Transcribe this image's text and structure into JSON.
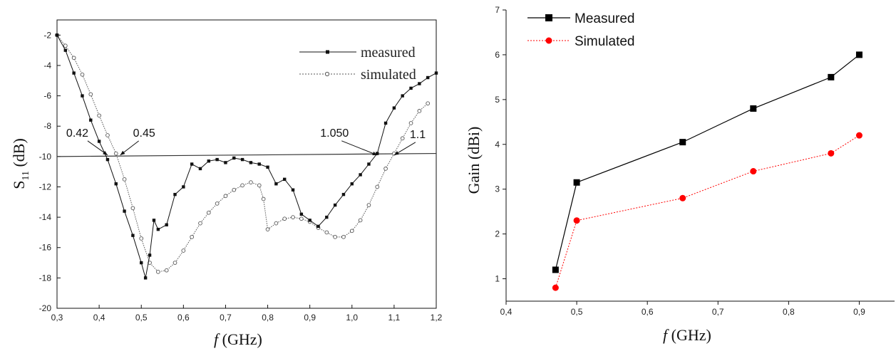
{
  "chart_data": [
    {
      "type": "line",
      "title": "",
      "xlabel_italic": "f",
      "xlabel_rest": " (GHz)",
      "ylabel_main": "S",
      "ylabel_sub": "11",
      "ylabel_unit": " (dB)",
      "xlim": [
        0.3,
        1.2
      ],
      "ylim": [
        -20,
        -1
      ],
      "xticks": [
        0.3,
        0.4,
        0.5,
        0.6,
        0.7,
        0.8,
        0.9,
        1.0,
        1.1,
        1.2
      ],
      "xtick_labels": [
        "0,3",
        "0,4",
        "0,5",
        "0,6",
        "0,7",
        "0,8",
        "0,9",
        "1,0",
        "1,1",
        "1,2"
      ],
      "yticks": [
        -20,
        -18,
        -16,
        -14,
        -12,
        -10,
        -8,
        -6,
        -4,
        -2
      ],
      "ytick_labels": [
        "-20",
        "-18",
        "-16",
        "-14",
        "-12",
        "-10",
        "-8",
        "-6",
        "-4",
        "-2"
      ],
      "grid": false,
      "legend_position": "top-right",
      "reference_line": {
        "x": [
          0.3,
          1.2
        ],
        "y": [
          -10.0,
          -9.8
        ]
      },
      "annotations": [
        {
          "text": "0.42",
          "x": 0.42,
          "y": -10
        },
        {
          "text": "0.45",
          "x": 0.45,
          "y": -10
        },
        {
          "text": "1.050",
          "x": 1.06,
          "y": -10
        },
        {
          "text": "1.1",
          "x": 1.1,
          "y": -10
        }
      ],
      "series": [
        {
          "name": "measured",
          "color": "#111111",
          "x": [
            0.3,
            0.32,
            0.34,
            0.36,
            0.38,
            0.4,
            0.42,
            0.44,
            0.46,
            0.48,
            0.5,
            0.51,
            0.52,
            0.53,
            0.54,
            0.56,
            0.58,
            0.6,
            0.62,
            0.64,
            0.66,
            0.68,
            0.7,
            0.72,
            0.74,
            0.76,
            0.78,
            0.8,
            0.82,
            0.84,
            0.86,
            0.88,
            0.9,
            0.92,
            0.94,
            0.96,
            0.98,
            1.0,
            1.02,
            1.04,
            1.06,
            1.08,
            1.1,
            1.12,
            1.14,
            1.16,
            1.18,
            1.2
          ],
          "y": [
            -2.0,
            -3.0,
            -4.5,
            -6.0,
            -7.6,
            -9.0,
            -10.2,
            -11.8,
            -13.6,
            -15.2,
            -17.0,
            -18.0,
            -16.5,
            -14.2,
            -14.8,
            -14.5,
            -12.5,
            -12.0,
            -10.5,
            -10.8,
            -10.3,
            -10.2,
            -10.4,
            -10.1,
            -10.2,
            -10.4,
            -10.5,
            -10.7,
            -11.8,
            -11.5,
            -12.2,
            -13.8,
            -14.2,
            -14.6,
            -14.0,
            -13.2,
            -12.5,
            -11.8,
            -11.2,
            -10.5,
            -9.8,
            -7.8,
            -6.8,
            -6.0,
            -5.5,
            -5.2,
            -4.8,
            -4.5
          ]
        },
        {
          "name": "simulated",
          "color": "#555555",
          "x": [
            0.3,
            0.32,
            0.34,
            0.36,
            0.38,
            0.4,
            0.42,
            0.44,
            0.46,
            0.48,
            0.5,
            0.52,
            0.54,
            0.56,
            0.58,
            0.6,
            0.62,
            0.64,
            0.66,
            0.68,
            0.7,
            0.72,
            0.74,
            0.76,
            0.78,
            0.79,
            0.8,
            0.82,
            0.84,
            0.86,
            0.88,
            0.9,
            0.92,
            0.94,
            0.96,
            0.98,
            1.0,
            1.02,
            1.04,
            1.06,
            1.08,
            1.1,
            1.12,
            1.14,
            1.16,
            1.18
          ],
          "y": [
            -2.0,
            -2.7,
            -3.5,
            -4.6,
            -5.9,
            -7.3,
            -8.6,
            -9.8,
            -11.5,
            -13.4,
            -15.4,
            -17.0,
            -17.6,
            -17.5,
            -17.0,
            -16.2,
            -15.3,
            -14.4,
            -13.7,
            -13.1,
            -12.6,
            -12.2,
            -11.9,
            -11.7,
            -11.9,
            -12.8,
            -14.8,
            -14.4,
            -14.1,
            -14.0,
            -14.1,
            -14.3,
            -14.7,
            -15.0,
            -15.3,
            -15.3,
            -14.9,
            -14.2,
            -13.2,
            -12.0,
            -10.8,
            -9.8,
            -8.8,
            -7.8,
            -7.0,
            -6.5
          ]
        }
      ]
    },
    {
      "type": "line",
      "title": "",
      "xlabel_italic": "f",
      "xlabel_rest": " (GHz)",
      "ylabel": "Gain (dBi)",
      "xlim": [
        0.4,
        0.95
      ],
      "ylim": [
        0.5,
        7
      ],
      "xticks": [
        0.4,
        0.5,
        0.6,
        0.7,
        0.8,
        0.9
      ],
      "xtick_labels": [
        "0,4",
        "0,5",
        "0,6",
        "0,7",
        "0,8",
        "0,9"
      ],
      "yticks": [
        1,
        2,
        3,
        4,
        5,
        6,
        7
      ],
      "ytick_labels": [
        "1",
        "2",
        "3",
        "4",
        "5",
        "6",
        "7"
      ],
      "grid": false,
      "legend_position": "top-left",
      "series": [
        {
          "name": "Measured",
          "color": "#000000",
          "x": [
            0.47,
            0.5,
            0.65,
            0.75,
            0.86,
            0.9
          ],
          "y": [
            1.2,
            3.15,
            4.05,
            4.8,
            5.5,
            6.0
          ]
        },
        {
          "name": "Simulated",
          "color": "#ff0000",
          "x": [
            0.47,
            0.5,
            0.65,
            0.75,
            0.86,
            0.9
          ],
          "y": [
            0.8,
            2.3,
            2.8,
            3.4,
            3.8,
            4.2
          ]
        }
      ]
    }
  ]
}
